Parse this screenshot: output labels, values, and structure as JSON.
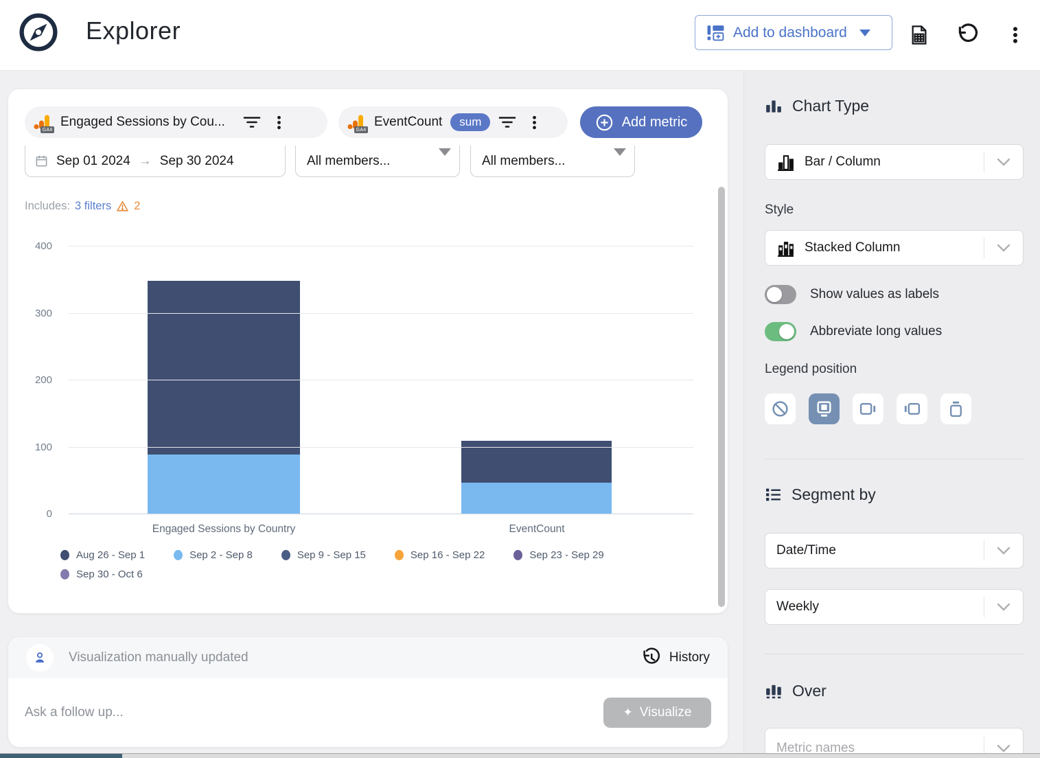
{
  "header": {
    "title": "Explorer",
    "add_to_dashboard_label": "Add to dashboard"
  },
  "metrics_bar": {
    "metric1": {
      "label": "Engaged Sessions by Cou...",
      "source_badge": "GA4"
    },
    "metric2": {
      "label": "EventCount",
      "aggregation_badge": "sum",
      "source_badge": "GA4"
    },
    "add_metric_label": "Add metric"
  },
  "filter_bar": {
    "date_range": {
      "start": "Sep 01 2024",
      "end": "Sep 30 2024"
    },
    "members": [
      "All members...",
      "All members..."
    ],
    "includes": {
      "prefix": "Includes:",
      "link": "3 filters",
      "warning_count": "2"
    }
  },
  "chart_data": {
    "type": "bar",
    "style": "Stacked Column",
    "categories": [
      "Engaged Sessions by Country",
      "EventCount"
    ],
    "series": [
      {
        "name": "Aug 26 - Sep 1",
        "color": "#3f4e71",
        "values": [
          260,
          63
        ]
      },
      {
        "name": "Sep 2 - Sep 8",
        "color": "#79b9f0",
        "values": [
          88,
          46
        ]
      },
      {
        "name": "Sep 9 - Sep 15",
        "color": "#4b5d84",
        "values": [
          0,
          0
        ]
      },
      {
        "name": "Sep 16 - Sep 22",
        "color": "#f7a43a",
        "values": [
          0,
          0
        ]
      },
      {
        "name": "Sep 23 - Sep 29",
        "color": "#6b6198",
        "values": [
          0,
          0
        ]
      },
      {
        "name": "Sep 30 - Oct 6",
        "color": "#837aae",
        "values": [
          0,
          0
        ]
      }
    ],
    "stack_order_bottom_to_top": [
      "Sep 2 - Sep 8",
      "Aug 26 - Sep 1"
    ],
    "ylim": [
      0,
      400
    ],
    "yticks": [
      0,
      100,
      200,
      300,
      400
    ],
    "grid": true,
    "legend_position": "bottom"
  },
  "status_bar": {
    "message": "Visualization manually updated",
    "history_label": "History"
  },
  "followup": {
    "placeholder": "Ask a follow up...",
    "visualize_label": "Visualize"
  },
  "sidebar": {
    "chart_type": {
      "heading": "Chart Type",
      "value": "Bar / Column"
    },
    "style": {
      "label": "Style",
      "value": "Stacked Column"
    },
    "toggles": [
      {
        "label": "Show values as labels",
        "on": false
      },
      {
        "label": "Abbreviate long values",
        "on": true
      }
    ],
    "legend_position": {
      "label": "Legend position",
      "selected": "bottom",
      "options": [
        "none",
        "bottom",
        "right",
        "left",
        "top"
      ]
    },
    "segment_by": {
      "heading": "Segment by",
      "dimension": "Date/Time",
      "granularity": "Weekly"
    },
    "over": {
      "heading": "Over",
      "value": "Metric names"
    }
  },
  "colors": {
    "accent_blue": "#5571bf",
    "link_blue": "#4a73c8",
    "toggle_on_green": "#6cbc80",
    "warning_orange": "#e78b3c",
    "legend_button_accent": "#7590b3",
    "scroll_thumb_teal": "#3e6274"
  }
}
